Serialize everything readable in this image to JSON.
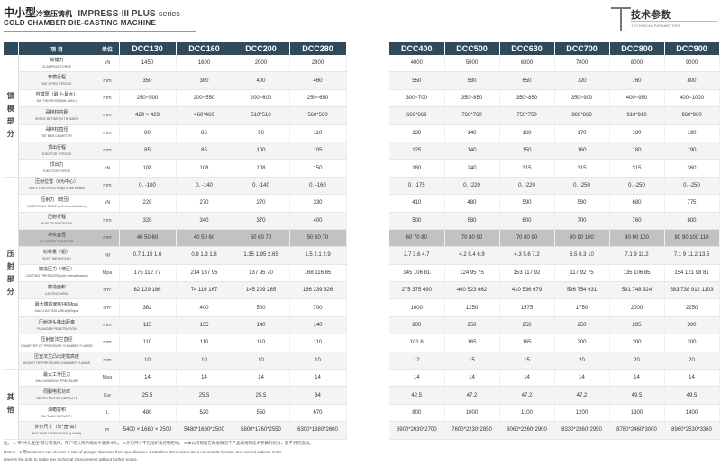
{
  "header": {
    "title_big": "中小型",
    "title_small": "冷室压铸机",
    "series_name": "IMPRESS-III  PLUS",
    "series_word": "series",
    "subtitle": "COLD CHAMBER DIE-CASTING MACHINE",
    "tech_title": "技术参数",
    "tech_en": "TECHNICAL PARAMETERS"
  },
  "table": {
    "item_label": "项  目",
    "unit_label": "单位",
    "left_models": [
      "DCC130",
      "DCC160",
      "DCC200",
      "DCC280"
    ],
    "right_models": [
      "DCC400",
      "DCC500",
      "DCC630",
      "DCC700",
      "DCC800",
      "DCC900"
    ],
    "groups": [
      "锁模部分",
      "压射部分",
      "其他"
    ],
    "rows": [
      {
        "cn": "锁模力",
        "en": "CLAMPING FORCE",
        "unit": "kN",
        "left": [
          "1450",
          "1600",
          "2000",
          "2800"
        ],
        "right": [
          "4000",
          "5000",
          "6300",
          "7000",
          "8000",
          "9000"
        ]
      },
      {
        "cn": "开模行程",
        "en": "DIE OPEN STROKE",
        "unit": "mm",
        "left": [
          "350",
          "380",
          "400",
          "460"
        ],
        "right": [
          "550",
          "580",
          "650",
          "720",
          "760",
          "800"
        ]
      },
      {
        "cn": "容模厚（最小-最大）",
        "en": "DIE THICKESS(MIN.-MAX.)",
        "unit": "mm",
        "left": [
          "250~500",
          "200~550",
          "200~600",
          "250~650"
        ],
        "right": [
          "300~700",
          "350~850",
          "350~850",
          "350~900",
          "400~950",
          "400~1000"
        ]
      },
      {
        "cn": "哥林柱内距",
        "en": "SPACE BETWEEN TIE BARS",
        "unit": "mm",
        "left": [
          "429 × 429",
          "460*460",
          "510*510",
          "560*560"
        ],
        "right": [
          "669*669",
          "760*760",
          "750*750",
          "860*860",
          "910*910",
          "960*960"
        ]
      },
      {
        "cn": "哥林柱直径",
        "en": "TIE BAR DIAMETER",
        "unit": "mm",
        "left": [
          "80",
          "85",
          "90",
          "110"
        ],
        "right": [
          "130",
          "140",
          "160",
          "170",
          "180",
          "190"
        ]
      },
      {
        "cn": "顶出行程",
        "en": "EJECTOR STROKE",
        "unit": "mm",
        "left": [
          "85",
          "85",
          "100",
          "105"
        ],
        "right": [
          "125",
          "140",
          "150",
          "160",
          "180",
          "190"
        ]
      },
      {
        "cn": "顶出力",
        "en": "EJECTOR FORCE",
        "unit": "kN",
        "left": [
          "108",
          "108",
          "108",
          "150"
        ],
        "right": [
          "180",
          "240",
          "315",
          "315",
          "315",
          "360"
        ]
      },
      {
        "cn": "压射位置（0为中心）",
        "en": "INJECTION POSITION(0 is the center)",
        "unit": "mm",
        "left": [
          "0, -100",
          "0, -140",
          "0, -140",
          "0, -160"
        ],
        "right": [
          "0, -175",
          "0, -220",
          "0, -220",
          "0, -250",
          "0, -250",
          "0, -250"
        ]
      },
      {
        "cn": "压射力（增压）",
        "en": "INJECTION FORCE (with intensification)",
        "unit": "kN",
        "left": [
          "220",
          "270",
          "270",
          "330"
        ],
        "right": [
          "410",
          "480",
          "590",
          "590",
          "680",
          "775"
        ]
      },
      {
        "cn": "压射行程",
        "en": "INJECTION STROKE",
        "unit": "mm",
        "left": [
          "320",
          "340",
          "370",
          "400"
        ],
        "right": [
          "500",
          "580",
          "600",
          "700",
          "760",
          "800"
        ]
      },
      {
        "cn": "冲头直径",
        "en": "PLUNGER DIAMETER",
        "unit": "mm",
        "hl": true,
        "left": [
          "40  50  60",
          "40  50  60",
          "50  60  70",
          "50  60  70"
        ],
        "right": [
          "60  70  80",
          "70  80  90",
          "70  80  90",
          "80  90  100",
          "80  90  100",
          "80  90  100  110"
        ]
      },
      {
        "cn": "射料量（铝）",
        "en": "SHOT WEIGHT(AL)",
        "unit": "kg",
        "left": [
          "0.7  1.15  1.6",
          "0.8  1.3  1.8",
          "1.35  1.95  2.65",
          "1.5  2.1  2.9"
        ],
        "right": [
          "2.7  3.6  4.7",
          "4.2  5.4  6.9",
          "4.3  5.6  7.2",
          "6.5  8.3  10",
          "7.1  9  11.2",
          "7.1  9  11.2  13.5"
        ]
      },
      {
        "cn": "铸造压力（增压）",
        "en": "CASTING PRESSURE (with intensification)",
        "unit": "Mpa",
        "left": [
          "175  112  77",
          "214  137  95",
          "137  95  70",
          "168  116  85"
        ],
        "right": [
          "145  106  81",
          "124  95  75",
          "153  117  92",
          "117  92  75",
          "135  106  85",
          "154  121  98  81"
        ]
      },
      {
        "cn": "铸造面积",
        "en": "CASTING AREA",
        "unit": "cm²",
        "left": [
          "82  129  186",
          "74  116  167",
          "145  209  285",
          "166  239  326"
        ],
        "right": [
          "275  375  490",
          "400  523  662",
          "410  536  679",
          "596  754  931",
          "591  748  924",
          "583  738  912  1103"
        ]
      },
      {
        "cn": "最大铸造面积(40Mpa)",
        "en": "MAX.CASTING AREA(40Mpa)",
        "unit": "cm²",
        "left": [
          "362",
          "400",
          "500",
          "700"
        ],
        "right": [
          "1000",
          "1250",
          "1575",
          "1750",
          "2000",
          "2250"
        ]
      },
      {
        "cn": "压射冲头推出距离",
        "en": "PLUNGER PENETRATION",
        "unit": "mm",
        "left": [
          "115",
          "135",
          "140",
          "140"
        ],
        "right": [
          "200",
          "250",
          "250",
          "250",
          "295",
          "300"
        ]
      },
      {
        "cn": "压射室法兰直径",
        "en": "DIAMETER OF PRESSURE CHAMBER FLANGE",
        "unit": "mm",
        "left": [
          "110",
          "110",
          "110",
          "110"
        ],
        "right": [
          "101.6",
          "165",
          "165",
          "200",
          "200",
          "200"
        ]
      },
      {
        "cn": "压室法兰凸出定模高度",
        "en": "HEIGHT OF PRESSURE CHAMBER FLANGE",
        "unit": "mm",
        "left": [
          "10",
          "10",
          "10",
          "10"
        ],
        "right": [
          "12",
          "15",
          "15",
          "20",
          "20",
          "20"
        ]
      },
      {
        "cn": "最大工作压力",
        "en": "MAX.WORKING PRESSURE",
        "unit": "Mpa",
        "left": [
          "14",
          "14",
          "14",
          "14"
        ],
        "right": [
          "14",
          "14",
          "14",
          "14",
          "14",
          "14"
        ]
      },
      {
        "cn": "伺服电机功率",
        "en": "SERVO MOTOR CAPACITY",
        "unit": "Kw",
        "left": [
          "25.5",
          "25.5",
          "25.5",
          "34"
        ],
        "right": [
          "42.5",
          "47.2",
          "47.2",
          "47.2",
          "49.5",
          "49.5"
        ]
      },
      {
        "cn": "油箱容积",
        "en": "OIL TANK CAPACITY",
        "unit": "L",
        "left": [
          "480",
          "520",
          "550",
          "670"
        ],
        "right": [
          "800",
          "1000",
          "1100",
          "1200",
          "1300",
          "1400"
        ]
      },
      {
        "cn": "外形尺寸（长*宽*高）",
        "en": "MACHINE DIMENSIONS (L*W*H)",
        "unit": "m",
        "left": [
          "5400 × 1660 × 2500",
          "5480*1690*2500",
          "5800*1760*2550",
          "6300*1880*2600"
        ],
        "right": [
          "6900*2030*2700",
          "7600*2230*2850",
          "8060*2260*2900",
          "8330*2360*2950",
          "8780*2460*3000",
          "8960*2530*3360"
        ]
      }
    ]
  },
  "footer": {
    "line1": "注。 1. 带\"冲头直径\"部分客选项，用户可从所示规格中选择冲头。 2.外形尺寸不包括炉及控制柜地。 3.本公司保留在改进情况下产品规格和技术参数的权力，恕不另行通知。",
    "line2": "Notes： 1.用Customer can choose 2 size of plunger diameter from specification.    2.Machine dimensions does not include furnace and control cabinet.    3.We",
    "line3": "reserve the right to make any technical improvement without further notice."
  }
}
